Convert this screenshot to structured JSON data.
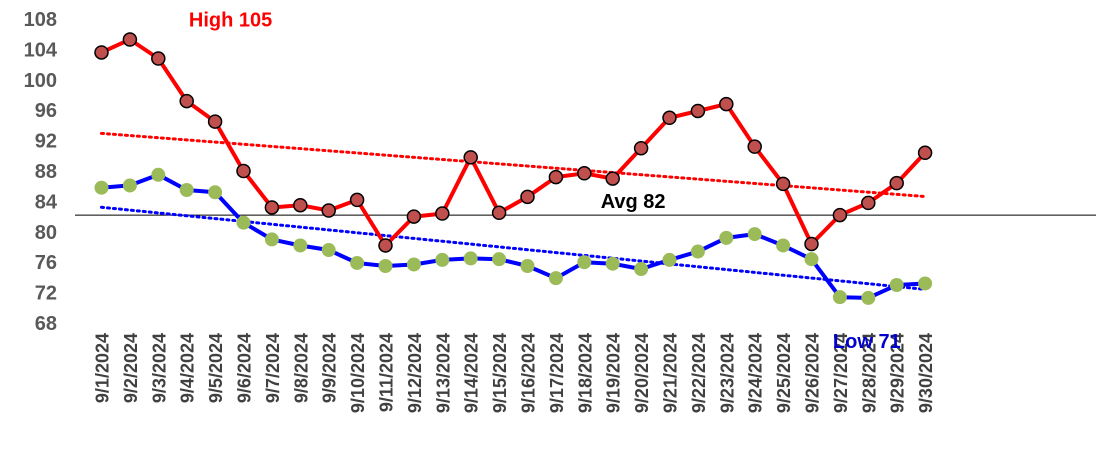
{
  "chart_data": {
    "type": "line",
    "title": "",
    "xlabel": "",
    "ylabel": "",
    "ylim": [
      68,
      108
    ],
    "yticks": [
      68,
      72,
      76,
      80,
      84,
      88,
      92,
      96,
      100,
      104,
      108
    ],
    "grid": false,
    "legend": "none",
    "x": [
      "9/1/2024",
      "9/2/2024",
      "9/3/2024",
      "9/4/2024",
      "9/5/2024",
      "9/6/2024",
      "9/7/2024",
      "9/8/2024",
      "9/9/2024",
      "9/10/2024",
      "9/11/2024",
      "9/12/2024",
      "9/13/2024",
      "9/14/2024",
      "9/15/2024",
      "9/16/2024",
      "9/17/2024",
      "9/18/2024",
      "9/19/2024",
      "9/20/2024",
      "9/21/2024",
      "9/22/2024",
      "9/23/2024",
      "9/24/2024",
      "9/25/2024",
      "9/26/2024",
      "9/27/2024",
      "9/28/2024",
      "9/29/2024",
      "9/30/2024"
    ],
    "series": [
      {
        "color": "#ff0000",
        "marker_color": "#c0504d",
        "trendline_color": "#ff0000",
        "values": [
          103.6,
          105.3,
          102.8,
          97.2,
          94.5,
          88.0,
          83.2,
          83.5,
          82.8,
          84.2,
          78.2,
          82.0,
          82.4,
          89.8,
          82.5,
          84.6,
          87.2,
          87.7,
          87.0,
          91.0,
          95.0,
          95.9,
          96.8,
          91.2,
          86.3,
          78.4,
          82.2,
          83.8,
          86.4,
          90.4
        ]
      },
      {
        "color": "#0000ff",
        "marker_color": "#9bbb59",
        "trendline_color": "#0000ff",
        "values": [
          85.8,
          86.1,
          87.5,
          85.5,
          85.2,
          81.2,
          79.0,
          78.2,
          77.6,
          75.9,
          75.5,
          75.7,
          76.3,
          76.5,
          76.4,
          75.5,
          73.9,
          76.0,
          75.8,
          75.1,
          76.3,
          77.4,
          79.2,
          79.7,
          78.2,
          76.4,
          71.4,
          71.3,
          73.0,
          73.2
        ]
      }
    ],
    "reference_line": {
      "value": 82.2,
      "color": "#000000"
    },
    "annotations": [
      {
        "text": "High 105",
        "color": "#ff0000",
        "anchor_index": 1,
        "anchor_value": 105.3
      },
      {
        "text": "Avg 82",
        "color": "#000000",
        "anchor_index": 18,
        "anchor_value": 82.2
      },
      {
        "text": "Low 71",
        "color": "#0000cc",
        "anchor_index": 26,
        "anchor_value": 71.4
      }
    ]
  }
}
